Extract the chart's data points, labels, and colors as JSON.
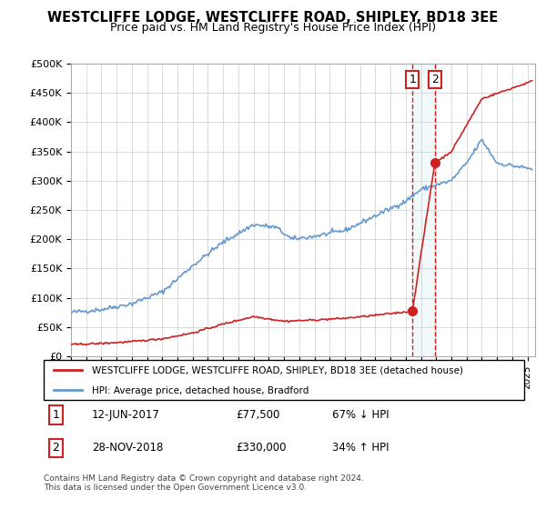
{
  "title": "WESTCLIFFE LODGE, WESTCLIFFE ROAD, SHIPLEY, BD18 3EE",
  "subtitle": "Price paid vs. HM Land Registry's House Price Index (HPI)",
  "legend_line1": "WESTCLIFFE LODGE, WESTCLIFFE ROAD, SHIPLEY, BD18 3EE (detached house)",
  "legend_line2": "HPI: Average price, detached house, Bradford",
  "annotation1_label": "1",
  "annotation1_date": "12-JUN-2017",
  "annotation1_price": "£77,500",
  "annotation1_hpi": "67% ↓ HPI",
  "annotation2_label": "2",
  "annotation2_date": "28-NOV-2018",
  "annotation2_price": "£330,000",
  "annotation2_hpi": "34% ↑ HPI",
  "footer": "Contains HM Land Registry data © Crown copyright and database right 2024.\nThis data is licensed under the Open Government Licence v3.0.",
  "hpi_color": "#6699cc",
  "price_color": "#cc2222",
  "annotation_color": "#cc2222",
  "marker_color": "#cc2222",
  "xmin": 1995.0,
  "xmax": 2025.5,
  "ymin": 0,
  "ymax": 500000,
  "yticks": [
    0,
    50000,
    100000,
    150000,
    200000,
    250000,
    300000,
    350000,
    400000,
    450000,
    500000
  ],
  "ytick_labels": [
    "£0",
    "£50K",
    "£100K",
    "£150K",
    "£200K",
    "£250K",
    "£300K",
    "£350K",
    "£400K",
    "£450K",
    "£500K"
  ],
  "sale1_x": 2017.44,
  "sale1_y": 77500,
  "sale2_x": 2018.91,
  "sale2_y": 330000,
  "shade_x1": 2017.44,
  "shade_x2": 2018.91,
  "hpi_base_x": [
    1995,
    1997,
    1999,
    2001,
    2003,
    2005,
    2007,
    2008.5,
    2009.5,
    2011,
    2013,
    2015,
    2017,
    2018,
    2020,
    2021,
    2022,
    2023,
    2025.3
  ],
  "hpi_base_y": [
    75000,
    80000,
    90000,
    110000,
    155000,
    195000,
    225000,
    220000,
    200000,
    205000,
    215000,
    240000,
    265000,
    285000,
    300000,
    330000,
    370000,
    330000,
    320000
  ],
  "price_base_x": [
    1995,
    1997,
    1999,
    2001,
    2003,
    2005,
    2007,
    2009,
    2011,
    2013,
    2015,
    2017,
    2017.44,
    2018.91,
    2020,
    2022,
    2025.3
  ],
  "price_base_y": [
    20000,
    22000,
    25000,
    30000,
    40000,
    55000,
    68000,
    60000,
    62000,
    65000,
    70000,
    76000,
    77500,
    330000,
    350000,
    440000,
    470000
  ]
}
